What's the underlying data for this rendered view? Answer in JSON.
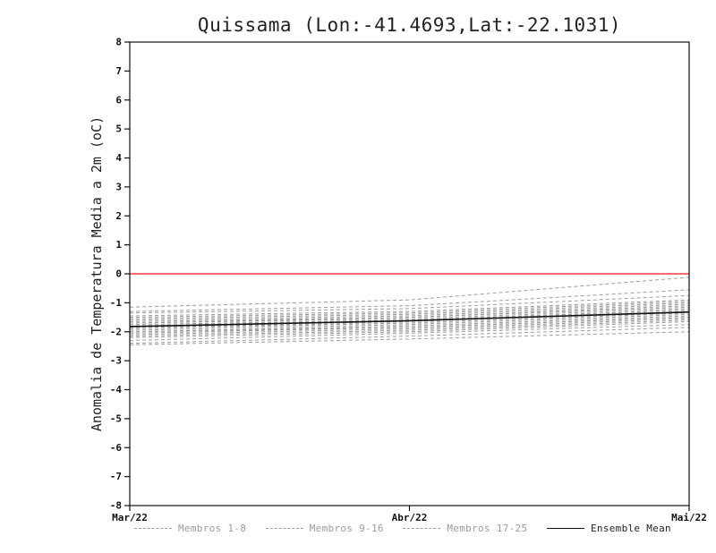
{
  "chart": {
    "title": "Quissama (Lon:-41.4693,Lat:-22.1031)",
    "ylabel": "Anomalia de Temperatura Media a 2m (oC)"
  },
  "legend": {
    "items": [
      {
        "label": "Membros 1-8",
        "style": "dashed",
        "color": "#9c9c9c",
        "text_color": "#9a9a9a"
      },
      {
        "label": "Membros 9-16",
        "style": "dashed",
        "color": "#9c9c9c",
        "text_color": "#9a9a9a"
      },
      {
        "label": "Membros 17-25",
        "style": "dashed",
        "color": "#9c9c9c",
        "text_color": "#9a9a9a"
      },
      {
        "label": "Ensemble Mean",
        "style": "solid",
        "color": "#111111",
        "text_color": "#222222"
      }
    ]
  },
  "chart_data": {
    "type": "line",
    "title": "Quissama (Lon:-41.4693,Lat:-22.1031)",
    "xlabel": "",
    "ylabel": "Anomalia de Temperatura Media a 2m (oC)",
    "x": [
      0,
      1,
      2
    ],
    "x_tick_positions": [
      0,
      1,
      2
    ],
    "x_tick_labels": [
      "Mar/22",
      "Abr/22",
      "Mai/22"
    ],
    "xlim": [
      0,
      2
    ],
    "ylim": [
      -8,
      8
    ],
    "y_tick_step": 1,
    "grid": false,
    "legend_position": "bottom",
    "zero_line": {
      "y": 0,
      "color": "#fa3c3c"
    },
    "member_color": "#9c9c9c",
    "mean_color": "#111111",
    "groups": [
      {
        "name": "Membros 1-8",
        "members": [
          [
            -1.15,
            -0.9,
            -0.12
          ],
          [
            -1.3,
            -1.1,
            -0.55
          ],
          [
            -1.35,
            -1.2,
            -0.75
          ],
          [
            -1.45,
            -1.3,
            -0.9
          ],
          [
            -1.5,
            -1.35,
            -0.95
          ],
          [
            -1.55,
            -1.4,
            -1.0
          ],
          [
            -1.6,
            -1.45,
            -1.05
          ],
          [
            -1.65,
            -1.5,
            -1.1
          ]
        ]
      },
      {
        "name": "Membros 9-16",
        "members": [
          [
            -1.7,
            -1.5,
            -1.15
          ],
          [
            -1.7,
            -1.55,
            -1.2
          ],
          [
            -1.75,
            -1.6,
            -1.25
          ],
          [
            -1.8,
            -1.6,
            -1.25
          ],
          [
            -1.85,
            -1.65,
            -1.3
          ],
          [
            -1.85,
            -1.7,
            -1.35
          ],
          [
            -1.9,
            -1.7,
            -1.35
          ],
          [
            -1.95,
            -1.75,
            -1.4
          ]
        ]
      },
      {
        "name": "Membros 17-25",
        "members": [
          [
            -2.0,
            -1.8,
            -1.45
          ],
          [
            -2.0,
            -1.85,
            -1.5
          ],
          [
            -2.05,
            -1.85,
            -1.5
          ],
          [
            -2.1,
            -1.9,
            -1.55
          ],
          [
            -2.15,
            -1.95,
            -1.6
          ],
          [
            -2.2,
            -2.0,
            -1.65
          ],
          [
            -2.3,
            -2.05,
            -1.75
          ],
          [
            -2.4,
            -2.15,
            -1.85
          ],
          [
            -2.45,
            -2.25,
            -2.0
          ]
        ]
      }
    ],
    "ensemble_mean": {
      "name": "Ensemble Mean",
      "values": [
        -1.82,
        -1.62,
        -1.32
      ]
    }
  }
}
